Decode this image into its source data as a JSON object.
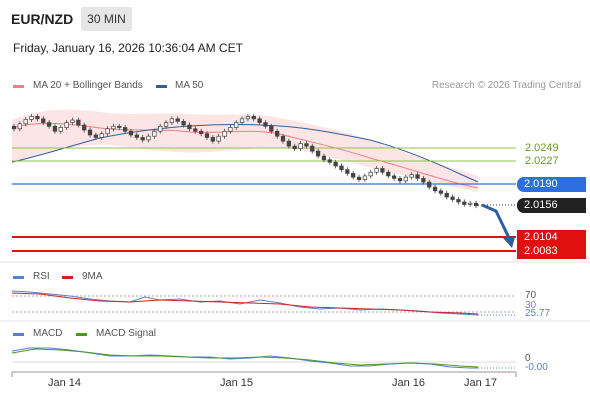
{
  "header": {
    "symbol": "EUR/NZD",
    "timeframe": "30 MIN",
    "datetime": "Friday, January 16, 2026 10:36:04 AM CET"
  },
  "legend": {
    "ma20_label": "MA 20 + Bollinger Bands",
    "ma50_label": "MA 50",
    "copyright": "Research © 2026 Trading Central"
  },
  "levels": {
    "res2": "2.0249",
    "res1": "2.0227",
    "pivot": "2.0190",
    "last": "2.0156",
    "sup1": "2.0104",
    "sup2": "2.0083"
  },
  "rsi": {
    "label": "RSI",
    "ma_label": "9MA",
    "level_70": "70",
    "level_30": "30",
    "value": "25.77"
  },
  "macd": {
    "label": "MACD",
    "signal_label": "MACD Signal",
    "zero": "0",
    "value": "-0.00"
  },
  "xaxis": {
    "labels": [
      "Jan 14",
      "Jan 15",
      "Jan 16",
      "Jan 17"
    ]
  },
  "colors": {
    "ma20": "#f08080",
    "ma50": "#2d5f9e",
    "pivot": "#2e6fe0",
    "support": "#e01010",
    "green_levels": "#8bc34a",
    "arrow": "#2d5f9e",
    "rsi": "#5a7fd6",
    "rsi_ma": "#d42020",
    "macd": "#5a7fd6",
    "macd_signal": "#4a9a1a"
  },
  "chart_data": {
    "type": "line",
    "title": "EUR/NZD 30 MIN",
    "x_labels": [
      "Jan 14",
      "Jan 15",
      "Jan 16",
      "Jan 17"
    ],
    "price_levels": {
      "resistance": [
        2.0249,
        2.0227
      ],
      "pivot": 2.019,
      "last": 2.0156,
      "support": [
        2.0104,
        2.0083
      ]
    },
    "close_series": [
      2.028,
      2.0288,
      2.0295,
      2.03,
      2.0296,
      2.029,
      2.0284,
      2.0276,
      2.0282,
      2.029,
      2.0294,
      2.0286,
      2.0278,
      2.027,
      2.0266,
      2.0272,
      2.028,
      2.0284,
      2.0282,
      2.0276,
      2.027,
      2.0266,
      2.0262,
      2.0268,
      2.0276,
      2.0284,
      2.029,
      2.0296,
      2.0292,
      2.0286,
      2.028,
      2.0276,
      2.0272,
      2.0266,
      2.026,
      2.0268,
      2.0276,
      2.0282,
      2.029,
      2.0296,
      2.03,
      2.0296,
      2.029,
      2.0284,
      2.0276,
      2.0268,
      2.026,
      2.0252,
      2.0248,
      2.0256,
      2.0252,
      2.0244,
      2.0236,
      2.023,
      2.0226,
      2.022,
      2.0214,
      2.0208,
      2.0202,
      2.0198,
      2.0204,
      2.021,
      2.0216,
      2.021,
      2.0204,
      2.02,
      2.0196,
      2.0202,
      2.0206,
      2.02,
      2.0194,
      2.0186,
      2.018,
      2.0176,
      2.017,
      2.0166,
      2.0162,
      2.0158,
      2.016,
      2.0156
    ],
    "rsi_last": 25.77,
    "macd_last": -0.0
  }
}
